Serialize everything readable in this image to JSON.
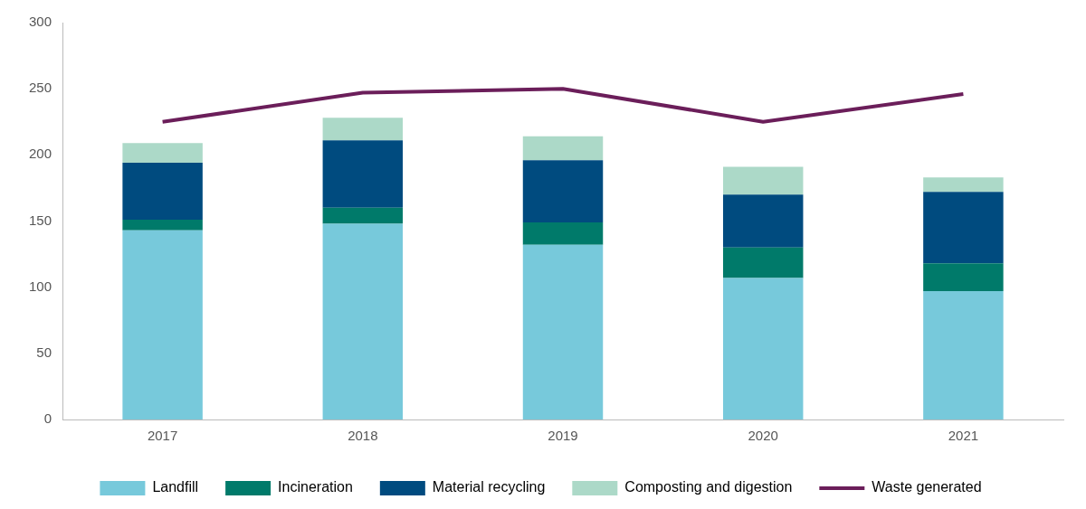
{
  "chart_data": {
    "type": "bar",
    "stacked": true,
    "categories": [
      "2017",
      "2018",
      "2019",
      "2020",
      "2021"
    ],
    "series": [
      {
        "name": "Landfill",
        "color": "#77c9db",
        "values": [
          143,
          148,
          132,
          107,
          97
        ]
      },
      {
        "name": "Incineration",
        "color": "#007a6a",
        "values": [
          8,
          12,
          17,
          23,
          21
        ]
      },
      {
        "name": "Material recycling",
        "color": "#004b7f",
        "values": [
          43,
          51,
          47,
          40,
          54
        ]
      },
      {
        "name": "Composting and digestion",
        "color": "#acd9c8",
        "values": [
          15,
          17,
          18,
          21,
          11
        ]
      },
      {
        "name": "Waste generated",
        "type": "line",
        "color": "#6b1e5a",
        "values": [
          225,
          247,
          250,
          225,
          246
        ]
      }
    ],
    "ylim": [
      0,
      300
    ],
    "yticks": [
      0,
      50,
      100,
      150,
      200,
      250,
      300
    ],
    "grid": false,
    "legend": "bottom",
    "marker": "none"
  }
}
